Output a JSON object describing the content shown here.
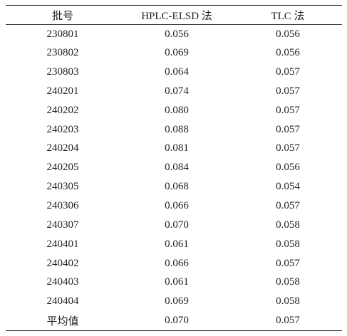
{
  "table": {
    "header": [
      "批号",
      "HPLC-ELSD 法",
      "TLC 法"
    ],
    "rows": [
      [
        "230801",
        "0.056",
        "0.056"
      ],
      [
        "230802",
        "0.069",
        "0.056"
      ],
      [
        "230803",
        "0.064",
        "0.057"
      ],
      [
        "240201",
        "0.074",
        "0.057"
      ],
      [
        "240202",
        "0.080",
        "0.057"
      ],
      [
        "240203",
        "0.088",
        "0.057"
      ],
      [
        "240204",
        "0.081",
        "0.057"
      ],
      [
        "240205",
        "0.084",
        "0.056"
      ],
      [
        "240305",
        "0.068",
        "0.054"
      ],
      [
        "240306",
        "0.066",
        "0.057"
      ],
      [
        "240307",
        "0.070",
        "0.058"
      ],
      [
        "240401",
        "0.061",
        "0.058"
      ],
      [
        "240402",
        "0.066",
        "0.057"
      ],
      [
        "240403",
        "0.061",
        "0.058"
      ],
      [
        "240404",
        "0.069",
        "0.058"
      ],
      [
        "平均值",
        "0.070",
        "0.057"
      ]
    ]
  }
}
